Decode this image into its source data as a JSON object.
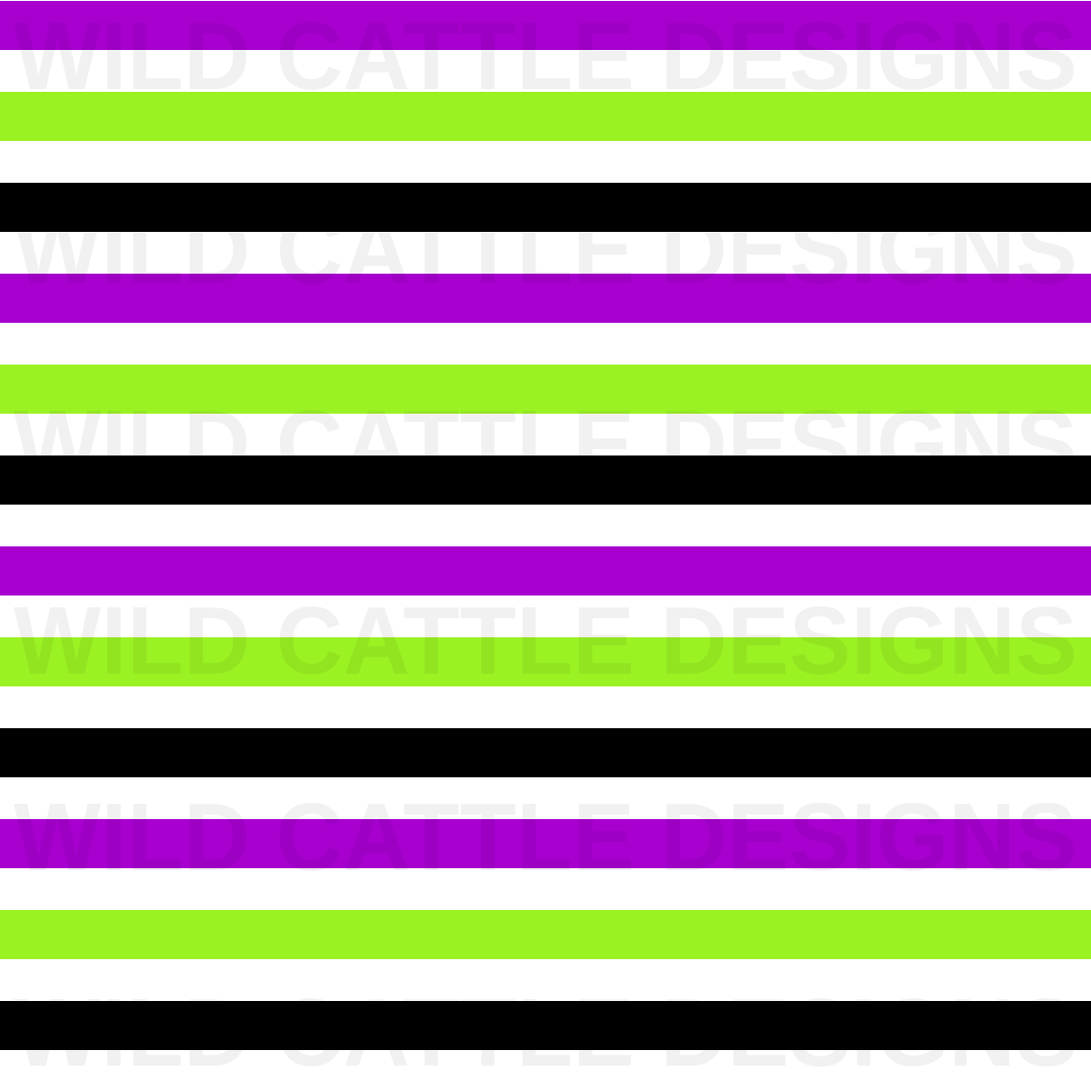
{
  "pattern": {
    "colors": {
      "purple": "#a700cf",
      "green": "#9bf223",
      "black": "#000000",
      "background": "#ffffff"
    },
    "stripe_sequence": [
      "purple",
      "green",
      "black",
      "purple",
      "green",
      "black",
      "purple",
      "green",
      "black",
      "purple",
      "green",
      "black"
    ]
  },
  "watermark": {
    "text": "WILD CATTLE DESIGNS",
    "repeat": 6
  }
}
